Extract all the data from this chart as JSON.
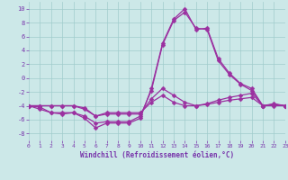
{
  "x": [
    0,
    1,
    2,
    3,
    4,
    5,
    6,
    7,
    8,
    9,
    10,
    11,
    12,
    13,
    14,
    15,
    16,
    17,
    18,
    19,
    20,
    21,
    22,
    23
  ],
  "line1": [
    -4,
    -4.5,
    -5,
    -5.2,
    -5,
    -5.8,
    -7.2,
    -6.5,
    -6.5,
    -6.5,
    -5.8,
    -1.5,
    5.0,
    8.5,
    10.0,
    7.0,
    7.2,
    2.8,
    0.7,
    -0.8,
    -1.5,
    -4,
    -3.8,
    -4
  ],
  "line2": [
    -4,
    -4.2,
    -5,
    -5,
    -5,
    -5.5,
    -6.5,
    -6.3,
    -6.3,
    -6.3,
    -5.5,
    -1.8,
    4.8,
    8.3,
    9.5,
    7.2,
    7.0,
    2.5,
    0.5,
    -0.9,
    -1.8,
    -4,
    -3.7,
    -4
  ],
  "line3": [
    -4,
    -4,
    -4,
    -4,
    -4,
    -4.5,
    -5.5,
    -5.2,
    -5.2,
    -5.2,
    -5.2,
    -3.0,
    -1.5,
    -2.5,
    -3.5,
    -4,
    -3.7,
    -3.2,
    -2.8,
    -2.5,
    -2.2,
    -4,
    -3.8,
    -4
  ],
  "line4": [
    -4,
    -4,
    -4,
    -4,
    -4,
    -4.3,
    -5.5,
    -5,
    -5,
    -5,
    -5,
    -3.5,
    -2.5,
    -3.5,
    -4,
    -4,
    -3.8,
    -3.5,
    -3.2,
    -3,
    -2.8,
    -4,
    -4,
    -4
  ],
  "line_color": "#9b30a0",
  "bg_color": "#cce8e8",
  "grid_color": "#a0cccc",
  "xlabel": "Windchill (Refroidissement éolien,°C)",
  "ylim": [
    -9,
    11
  ],
  "xlim": [
    0,
    23
  ],
  "yticks": [
    -8,
    -6,
    -4,
    -2,
    0,
    2,
    4,
    6,
    8,
    10
  ],
  "xticks": [
    0,
    1,
    2,
    3,
    4,
    5,
    6,
    7,
    8,
    9,
    10,
    11,
    12,
    13,
    14,
    15,
    16,
    17,
    18,
    19,
    20,
    21,
    22,
    23
  ]
}
